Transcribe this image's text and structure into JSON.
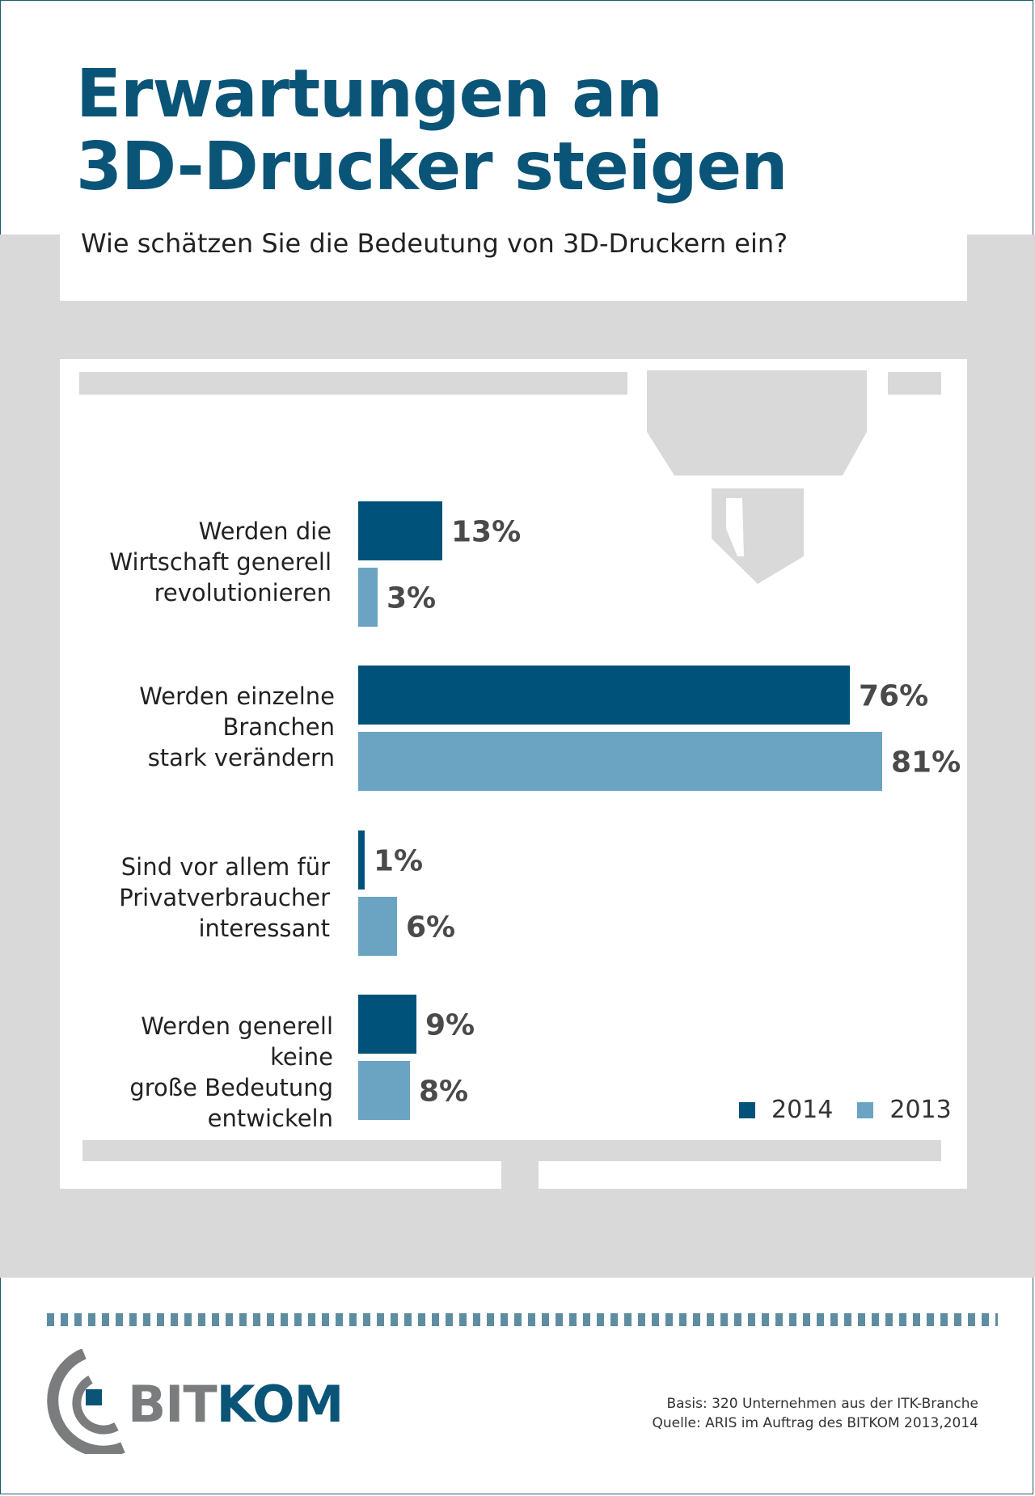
{
  "title_lines": [
    "Erwartungen an",
    "3D-Drucker steigen"
  ],
  "question": "Wie schätzen Sie die Bedeutung von 3D-Druckern ein?",
  "colors": {
    "series_2014": "#00527a",
    "series_2013": "#6aa4c2",
    "title": "#0a5478",
    "value_label": "#4a4a4a",
    "printer_gray": "#d9d9d9"
  },
  "chart_data": {
    "type": "bar",
    "orientation": "horizontal",
    "title": "Wie schätzen Sie die Bedeutung von 3D-Druckern ein?",
    "categories": [
      "Werden die Wirtschaft generell revolutionieren",
      "Werden einzelne Branchen stark verändern",
      "Sind vor allem für Privatverbraucher interessant",
      "Werden generell keine große Bedeutung entwickeln"
    ],
    "category_label_lines": [
      [
        "Werden die",
        "Wirtschaft generell",
        "revolutionieren"
      ],
      [
        "Werden einzelne",
        "Branchen",
        "stark verändern"
      ],
      [
        "Sind vor allem für",
        "Privatverbraucher",
        "interessant"
      ],
      [
        "Werden generell keine",
        "große Bedeutung",
        "entwickeln"
      ]
    ],
    "series": [
      {
        "name": "2014",
        "values": [
          13,
          76,
          1,
          9
        ],
        "labels": [
          "13%",
          "76%",
          "1%",
          "9%"
        ]
      },
      {
        "name": "2013",
        "values": [
          3,
          81,
          6,
          8
        ],
        "labels": [
          "3%",
          "81%",
          "6%",
          "8%"
        ]
      }
    ],
    "unit": "%",
    "xlim": [
      0,
      100
    ],
    "legend_position": "bottom-right",
    "grid": false
  },
  "footnote": {
    "basis": "Basis: 320 Unternehmen aus der ITK-Branche",
    "source": "Quelle: ARIS im Auftrag des BITKOM 2013,2014"
  },
  "logo": {
    "part1": "BIT",
    "part2": "KOM"
  }
}
